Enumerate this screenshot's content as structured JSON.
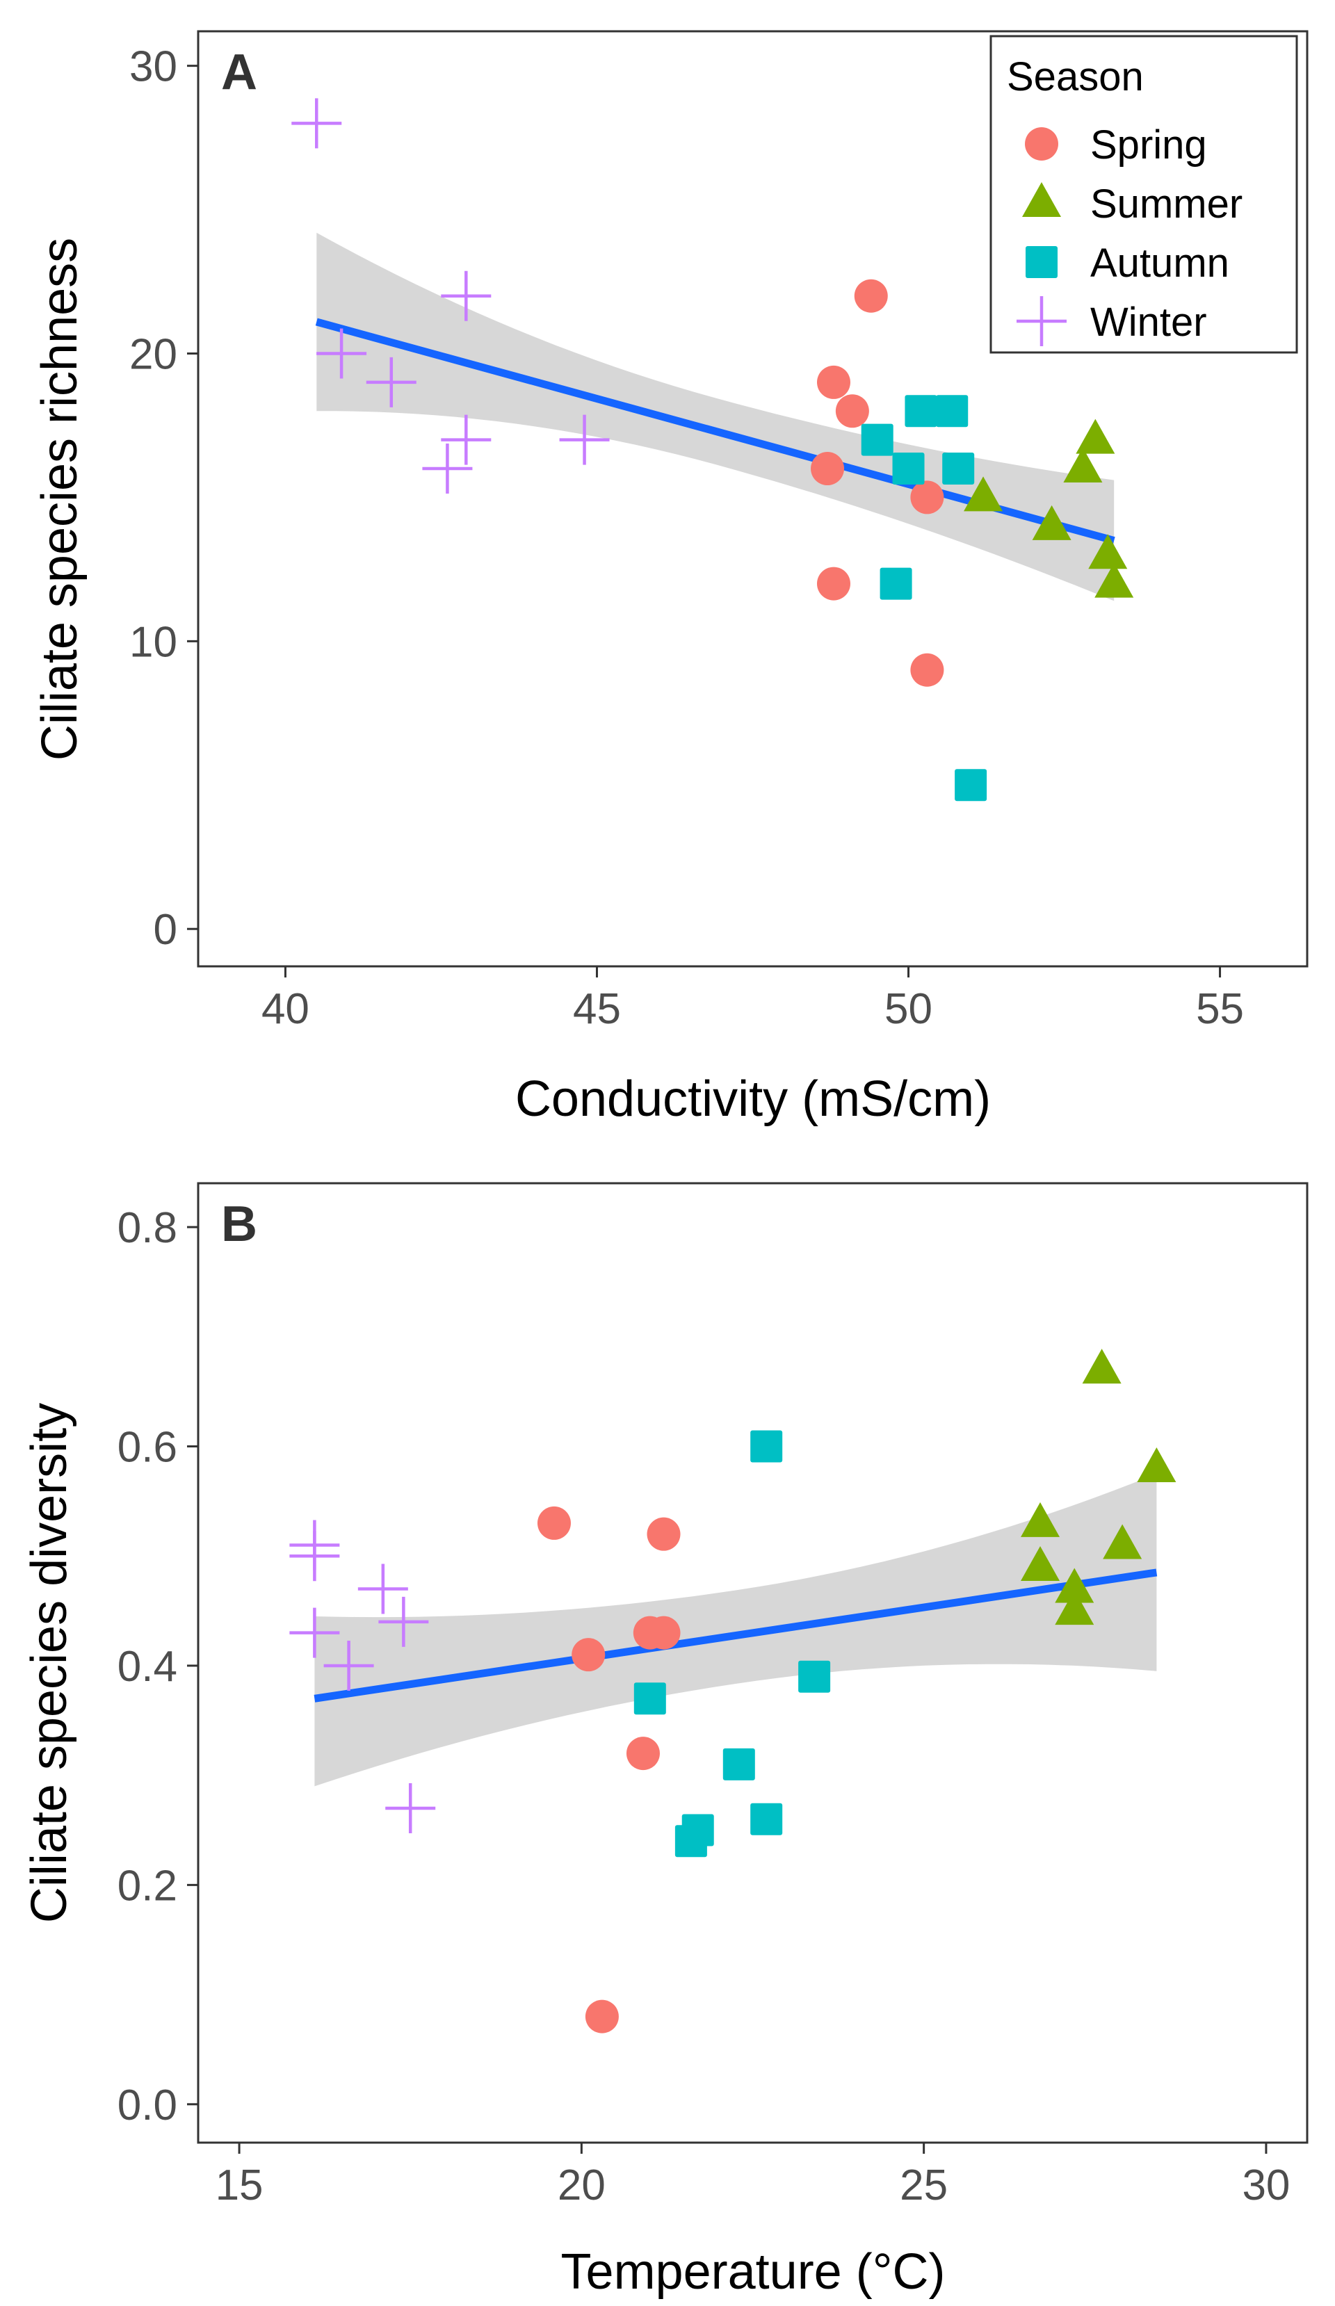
{
  "chart_data": [
    {
      "type": "scatter",
      "panel_label": "A",
      "xlabel": "Conductivity (mS/cm)",
      "ylabel": "Ciliate species richness",
      "xlim": [
        38.6,
        56.4
      ],
      "ylim": [
        -1.3,
        31.2
      ],
      "xticks": [
        40,
        45,
        50,
        55
      ],
      "yticks": [
        0,
        10,
        20,
        30
      ],
      "xtick_labels": [
        "40",
        "45",
        "50",
        "55"
      ],
      "ytick_labels": [
        "0",
        "10",
        "20",
        "30"
      ],
      "grid": false,
      "legend": {
        "title": "Season",
        "position": "top-right",
        "entries": [
          "Spring",
          "Summer",
          "Autumn",
          "Winter"
        ]
      },
      "series": [
        {
          "name": "Spring",
          "marker": "circle",
          "color": "#f8766d",
          "points": [
            [
              49.4,
              22
            ],
            [
              48.8,
              19
            ],
            [
              49.1,
              18
            ],
            [
              48.7,
              16
            ],
            [
              50.3,
              15
            ],
            [
              48.8,
              12
            ],
            [
              50.3,
              9
            ]
          ]
        },
        {
          "name": "Summer",
          "marker": "triangle",
          "color": "#7cae00",
          "points": [
            [
              53.0,
              17
            ],
            [
              52.8,
              16
            ],
            [
              51.2,
              15
            ],
            [
              52.3,
              14
            ],
            [
              53.2,
              13
            ],
            [
              53.3,
              12
            ]
          ]
        },
        {
          "name": "Autumn",
          "marker": "square",
          "color": "#00bfc4",
          "points": [
            [
              50.2,
              18
            ],
            [
              50.7,
              18
            ],
            [
              49.5,
              17
            ],
            [
              50.0,
              16
            ],
            [
              50.8,
              16
            ],
            [
              49.8,
              12
            ],
            [
              51.0,
              5
            ]
          ]
        },
        {
          "name": "Winter",
          "marker": "plus",
          "color": "#c77cff",
          "points": [
            [
              40.5,
              28
            ],
            [
              42.9,
              22
            ],
            [
              40.9,
              20
            ],
            [
              41.7,
              19
            ],
            [
              42.9,
              17
            ],
            [
              44.8,
              17
            ],
            [
              42.6,
              16
            ]
          ]
        }
      ],
      "fit": {
        "type": "linear",
        "color": "#1565ff",
        "x": [
          40.5,
          53.3
        ],
        "y": [
          21.1,
          13.5
        ],
        "ci_lower": [
          18.0,
          11.4
        ],
        "ci_upper": [
          24.2,
          15.6
        ]
      }
    },
    {
      "type": "scatter",
      "panel_label": "B",
      "xlabel": "Temperature (°C)",
      "ylabel": "Ciliate species diversity",
      "xlim": [
        14.4,
        30.6
      ],
      "ylim": [
        -0.035,
        0.84
      ],
      "xticks": [
        15,
        20,
        25,
        30
      ],
      "yticks": [
        0.0,
        0.2,
        0.4,
        0.6,
        0.8
      ],
      "xtick_labels": [
        "15",
        "20",
        "25",
        "30"
      ],
      "ytick_labels": [
        "0.0",
        "0.2",
        "0.4",
        "0.6",
        "0.8"
      ],
      "grid": false,
      "series": [
        {
          "name": "Spring",
          "marker": "circle",
          "color": "#f8766d",
          "points": [
            [
              19.6,
              0.53
            ],
            [
              21.2,
              0.52
            ],
            [
              21.0,
              0.43
            ],
            [
              21.2,
              0.43
            ],
            [
              20.1,
              0.41
            ],
            [
              20.9,
              0.32
            ],
            [
              20.3,
              0.08
            ]
          ]
        },
        {
          "name": "Summer",
          "marker": "triangle",
          "color": "#7cae00",
          "points": [
            [
              27.6,
              0.67
            ],
            [
              28.4,
              0.58
            ],
            [
              26.7,
              0.53
            ],
            [
              27.9,
              0.51
            ],
            [
              26.7,
              0.49
            ],
            [
              27.2,
              0.47
            ],
            [
              27.2,
              0.45
            ]
          ]
        },
        {
          "name": "Autumn",
          "marker": "square",
          "color": "#00bfc4",
          "points": [
            [
              22.7,
              0.6
            ],
            [
              23.4,
              0.39
            ],
            [
              21.0,
              0.37
            ],
            [
              22.3,
              0.31
            ],
            [
              22.7,
              0.26
            ],
            [
              21.7,
              0.25
            ],
            [
              21.6,
              0.24
            ]
          ]
        },
        {
          "name": "Winter",
          "marker": "plus",
          "color": "#c77cff",
          "points": [
            [
              16.1,
              0.51
            ],
            [
              16.1,
              0.5
            ],
            [
              17.1,
              0.47
            ],
            [
              17.4,
              0.44
            ],
            [
              16.1,
              0.43
            ],
            [
              16.6,
              0.4
            ],
            [
              17.5,
              0.27
            ]
          ]
        }
      ],
      "fit": {
        "type": "linear",
        "color": "#1565ff",
        "x": [
          16.1,
          28.4
        ],
        "y": [
          0.37,
          0.485
        ],
        "ci_lower": [
          0.29,
          0.395
        ],
        "ci_upper": [
          0.445,
          0.575
        ]
      }
    }
  ]
}
